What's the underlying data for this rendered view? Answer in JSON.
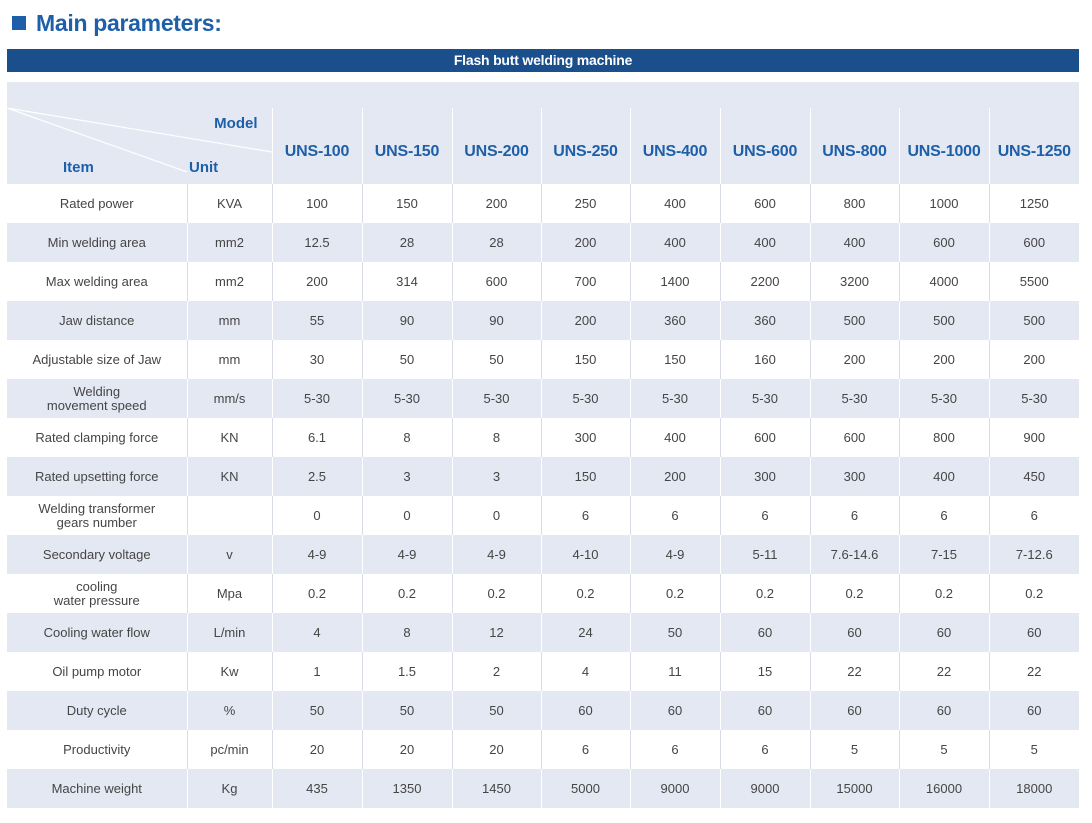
{
  "heading": "Main parameters:",
  "table_title": "Flash butt welding machine",
  "header": {
    "model_label": "Model",
    "item_label": "Item",
    "unit_label": "Unit",
    "models": [
      "UNS-100",
      "UNS-150",
      "UNS-200",
      "UNS-250",
      "UNS-400",
      "UNS-600",
      "UNS-800",
      "UNS-1000",
      "UNS-1250"
    ]
  },
  "rows": [
    {
      "item_lines": [
        "Rated power"
      ],
      "unit": "KVA",
      "values": [
        "100",
        "150",
        "200",
        "250",
        "400",
        "600",
        "800",
        "1000",
        "1250"
      ]
    },
    {
      "item_lines": [
        "Min welding area"
      ],
      "unit": "mm2",
      "values": [
        "12.5",
        "28",
        "28",
        "200",
        "400",
        "400",
        "400",
        "600",
        "600"
      ]
    },
    {
      "item_lines": [
        "Max welding area"
      ],
      "unit": "mm2",
      "values": [
        "200",
        "314",
        "600",
        "700",
        "1400",
        "2200",
        "3200",
        "4000",
        "5500"
      ]
    },
    {
      "item_lines": [
        "Jaw distance"
      ],
      "unit": "mm",
      "values": [
        "55",
        "90",
        "90",
        "200",
        "360",
        "360",
        "500",
        "500",
        "500"
      ]
    },
    {
      "item_lines": [
        "Adjustable size of Jaw"
      ],
      "unit": "mm",
      "values": [
        "30",
        "50",
        "50",
        "150",
        "150",
        "160",
        "200",
        "200",
        "200"
      ]
    },
    {
      "item_lines": [
        "Welding",
        "movement speed"
      ],
      "unit": "mm/s",
      "values": [
        "5-30",
        "5-30",
        "5-30",
        "5-30",
        "5-30",
        "5-30",
        "5-30",
        "5-30",
        "5-30"
      ]
    },
    {
      "item_lines": [
        "Rated clamping force"
      ],
      "unit": "KN",
      "values": [
        "6.1",
        "8",
        "8",
        "300",
        "400",
        "600",
        "600",
        "800",
        "900"
      ]
    },
    {
      "item_lines": [
        "Rated upsetting force"
      ],
      "unit": "KN",
      "values": [
        "2.5",
        "3",
        "3",
        "150",
        "200",
        "300",
        "300",
        "400",
        "450"
      ]
    },
    {
      "item_lines": [
        "Welding transformer",
        "gears number"
      ],
      "unit": "",
      "values": [
        "0",
        "0",
        "0",
        "6",
        "6",
        "6",
        "6",
        "6",
        "6"
      ]
    },
    {
      "item_lines": [
        "Secondary voltage"
      ],
      "unit": "v",
      "values": [
        "4-9",
        "4-9",
        "4-9",
        "4-10",
        "4-9",
        "5-11",
        "7.6-14.6",
        "7-15",
        "7-12.6"
      ]
    },
    {
      "item_lines": [
        "cooling",
        "water pressure"
      ],
      "unit": "Mpa",
      "values": [
        "0.2",
        "0.2",
        "0.2",
        "0.2",
        "0.2",
        "0.2",
        "0.2",
        "0.2",
        "0.2"
      ]
    },
    {
      "item_lines": [
        "Cooling water flow"
      ],
      "unit": "L/min",
      "values": [
        "4",
        "8",
        "12",
        "24",
        "50",
        "60",
        "60",
        "60",
        "60"
      ]
    },
    {
      "item_lines": [
        "Oil pump motor"
      ],
      "unit": "Kw",
      "values": [
        "1",
        "1.5",
        "2",
        "4",
        "11",
        "15",
        "22",
        "22",
        "22"
      ]
    },
    {
      "item_lines": [
        "Duty cycle"
      ],
      "unit": "%",
      "values": [
        "50",
        "50",
        "50",
        "60",
        "60",
        "60",
        "60",
        "60",
        "60"
      ]
    },
    {
      "item_lines": [
        "Productivity"
      ],
      "unit": "pc/min",
      "values": [
        "20",
        "20",
        "20",
        "6",
        "6",
        "6",
        "5",
        "5",
        "5"
      ]
    },
    {
      "item_lines": [
        "Machine weight"
      ],
      "unit": "Kg",
      "values": [
        "435",
        "1350",
        "1450",
        "5000",
        "9000",
        "9000",
        "15000",
        "16000",
        "18000"
      ]
    }
  ],
  "colors": {
    "accent": "#1d5fa8",
    "title_bar": "#1b4f8c",
    "band": "#e4e8f3"
  }
}
